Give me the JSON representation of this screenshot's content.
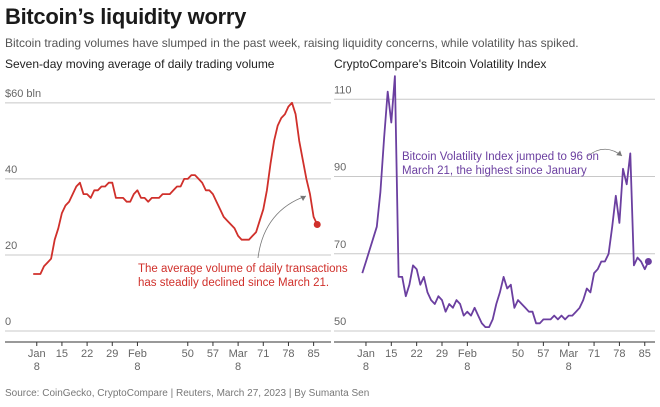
{
  "title": "Bitcoin’s liquidity worry",
  "subtitle": "Bitcoin trading volumes have slumped in the past week, raising liquidity concerns, while volatility has spiked.",
  "source": "Source: CoinGecko, CryptoCompare | Reuters, March 27, 2023 | By Sumanta Sen",
  "chart_data": [
    {
      "type": "line",
      "title": "Seven-day moving average of daily trading volume",
      "color": "#d0302b",
      "x": [
        7,
        8,
        9,
        10,
        11,
        12,
        13,
        14,
        15,
        16,
        17,
        18,
        19,
        20,
        21,
        22,
        23,
        24,
        25,
        26,
        27,
        28,
        29,
        30,
        31,
        32,
        33,
        34,
        35,
        36,
        37,
        38,
        39,
        40,
        41,
        42,
        43,
        44,
        45,
        46,
        47,
        48,
        49,
        50,
        51,
        52,
        53,
        54,
        55,
        56,
        57,
        58,
        59,
        60,
        61,
        62,
        63,
        64,
        65,
        66,
        67,
        68,
        69,
        70,
        71,
        72,
        73,
        74,
        75,
        76,
        77,
        78,
        79,
        80,
        81,
        82,
        83,
        84,
        85,
        86
      ],
      "values": [
        15,
        15,
        15,
        17,
        18,
        19,
        24,
        27,
        31,
        33,
        34,
        36,
        38,
        39,
        36,
        36,
        35,
        37,
        37,
        38,
        38,
        39,
        39,
        35,
        35,
        35,
        34,
        34,
        36,
        37,
        35,
        35,
        34,
        35,
        35,
        35,
        36,
        36,
        36,
        37,
        38,
        38,
        40,
        40,
        41,
        41,
        40,
        39,
        37,
        37,
        36,
        34,
        32,
        30,
        29,
        28,
        27,
        25,
        24,
        24,
        24,
        25,
        26,
        29,
        32,
        37,
        44,
        50,
        54,
        56,
        57,
        59,
        60,
        57,
        50,
        45,
        40,
        36,
        30,
        28
      ],
      "xlim": [
        0,
        89
      ],
      "xticks": [
        {
          "value": 8,
          "label": "Jan\n8"
        },
        15,
        22,
        29,
        {
          "value": 36,
          "label": "Feb\n8"
        },
        50,
        57,
        {
          "value": 64,
          "label": "Mar\n8"
        },
        71,
        78,
        85
      ],
      "ylim": [
        0,
        66
      ],
      "yticks": [
        0,
        20,
        40,
        {
          "value": 60,
          "label": "$60 bln"
        }
      ],
      "grid": true,
      "annotation": "The average volume of daily transactions\nhas steadily declined since March 21."
    },
    {
      "type": "line",
      "title": "CryptoCompare's Bitcoin Volatility Index",
      "color": "#6b3fa0",
      "x": [
        7,
        8,
        9,
        10,
        11,
        12,
        13,
        14,
        15,
        16,
        17,
        18,
        19,
        20,
        21,
        22,
        23,
        24,
        25,
        26,
        27,
        28,
        29,
        30,
        31,
        32,
        33,
        34,
        35,
        36,
        37,
        38,
        39,
        40,
        41,
        42,
        43,
        44,
        45,
        46,
        47,
        48,
        49,
        50,
        51,
        52,
        53,
        54,
        55,
        56,
        57,
        58,
        59,
        60,
        61,
        62,
        63,
        64,
        65,
        66,
        67,
        68,
        69,
        70,
        71,
        72,
        73,
        74,
        75,
        76,
        77,
        78,
        79,
        80,
        81,
        82,
        83,
        84,
        85,
        86
      ],
      "values": [
        65,
        68,
        71,
        74,
        77,
        86,
        100,
        112,
        104,
        116,
        64,
        64,
        59,
        62,
        67,
        66,
        62,
        64,
        60,
        58,
        57,
        59,
        58,
        55,
        57,
        56,
        58,
        57,
        54,
        55,
        54,
        56,
        54,
        52,
        51,
        51,
        53,
        57,
        60,
        64,
        61,
        62,
        56,
        58,
        57,
        56,
        55,
        55,
        52,
        52,
        53,
        53,
        53,
        54,
        53,
        54,
        53,
        54,
        54,
        55,
        56,
        58,
        61,
        60,
        65,
        66,
        68,
        68,
        70,
        77,
        85,
        78,
        92,
        88,
        96,
        67,
        69,
        68,
        66,
        68
      ],
      "xlim": [
        0,
        87
      ],
      "xticks": [
        {
          "value": 8,
          "label": "Jan\n8"
        },
        15,
        22,
        29,
        {
          "value": 36,
          "label": "Feb\n8"
        },
        50,
        57,
        {
          "value": 64,
          "label": "Mar\n8"
        },
        71,
        78,
        85
      ],
      "ylim": [
        50,
        115
      ],
      "yticks": [
        50,
        70,
        90,
        110
      ],
      "grid": true,
      "annotation": "Bitcoin Volatility Index jumped to 96 on\nMarch 21, the highest since January"
    }
  ]
}
